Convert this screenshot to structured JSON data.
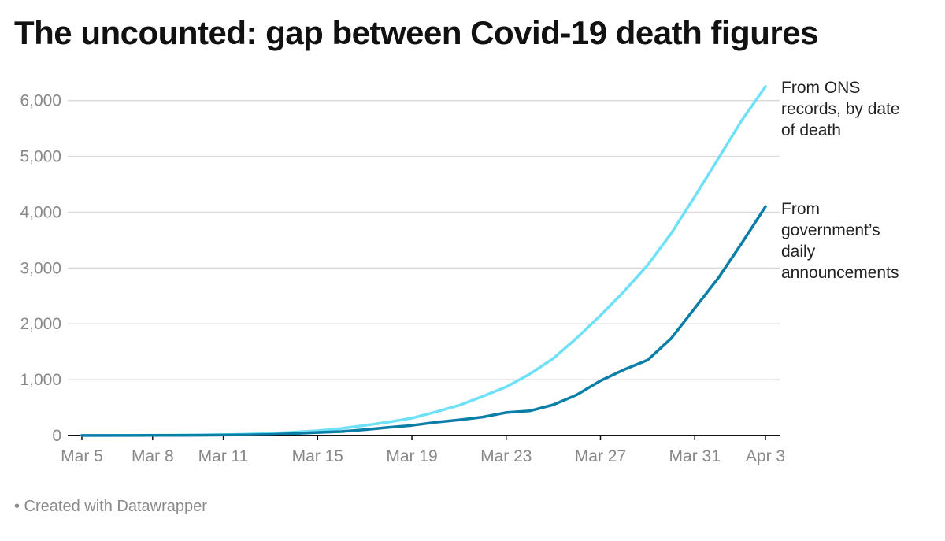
{
  "title": "The uncounted: gap between Covid-19 death figures",
  "footer": "• Created with Datawrapper",
  "colors": {
    "ons": "#6ee0f7",
    "gov": "#0b7ea8",
    "grid": "#d9d9d9",
    "axis": "#111111",
    "tick_text": "#888888",
    "label_text": "#222222"
  },
  "chart_data": {
    "type": "line",
    "title": "The uncounted: gap between Covid-19 death figures",
    "xlabel": "",
    "ylabel": "",
    "x": [
      "Mar 5",
      "Mar 6",
      "Mar 7",
      "Mar 8",
      "Mar 9",
      "Mar 10",
      "Mar 11",
      "Mar 12",
      "Mar 13",
      "Mar 14",
      "Mar 15",
      "Mar 16",
      "Mar 17",
      "Mar 18",
      "Mar 19",
      "Mar 20",
      "Mar 21",
      "Mar 22",
      "Mar 23",
      "Mar 24",
      "Mar 25",
      "Mar 26",
      "Mar 27",
      "Mar 28",
      "Mar 29",
      "Mar 30",
      "Mar 31",
      "Apr 1",
      "Apr 2",
      "Apr 3"
    ],
    "x_ticks": [
      "Mar 5",
      "Mar 8",
      "Mar 11",
      "Mar 15",
      "Mar 19",
      "Mar 23",
      "Mar 27",
      "Mar 31",
      "Apr 3"
    ],
    "x_tick_index": [
      0,
      3,
      6,
      10,
      14,
      18,
      22,
      26,
      29
    ],
    "ylim": [
      0,
      6250
    ],
    "y_ticks": [
      0,
      1000,
      2000,
      3000,
      4000,
      5000,
      6000
    ],
    "y_tick_labels": [
      "0",
      "1,000",
      "2,000",
      "3,000",
      "4,000",
      "5,000",
      "6,000"
    ],
    "grid": true,
    "legend": "direct labels at line ends",
    "series": [
      {
        "name": "From ONS records, by date of death",
        "label_lines": [
          "From ONS",
          "records, by date",
          "of death"
        ],
        "color_key": "ons",
        "values": [
          1,
          2,
          3,
          5,
          7,
          10,
          15,
          25,
          40,
          60,
          85,
          125,
          180,
          240,
          310,
          420,
          540,
          700,
          870,
          1100,
          1380,
          1750,
          2150,
          2580,
          3050,
          3620,
          4280,
          4960,
          5650,
          6250
        ]
      },
      {
        "name": "From government’s daily announcements",
        "label_lines": [
          "From",
          "government’s",
          "daily",
          "announcements"
        ],
        "color_key": "gov",
        "values": [
          1,
          1,
          2,
          3,
          4,
          6,
          8,
          12,
          20,
          35,
          55,
          70,
          105,
          145,
          180,
          235,
          280,
          330,
          410,
          440,
          550,
          730,
          980,
          1180,
          1350,
          1740,
          2280,
          2820,
          3450,
          4100
        ]
      }
    ]
  }
}
